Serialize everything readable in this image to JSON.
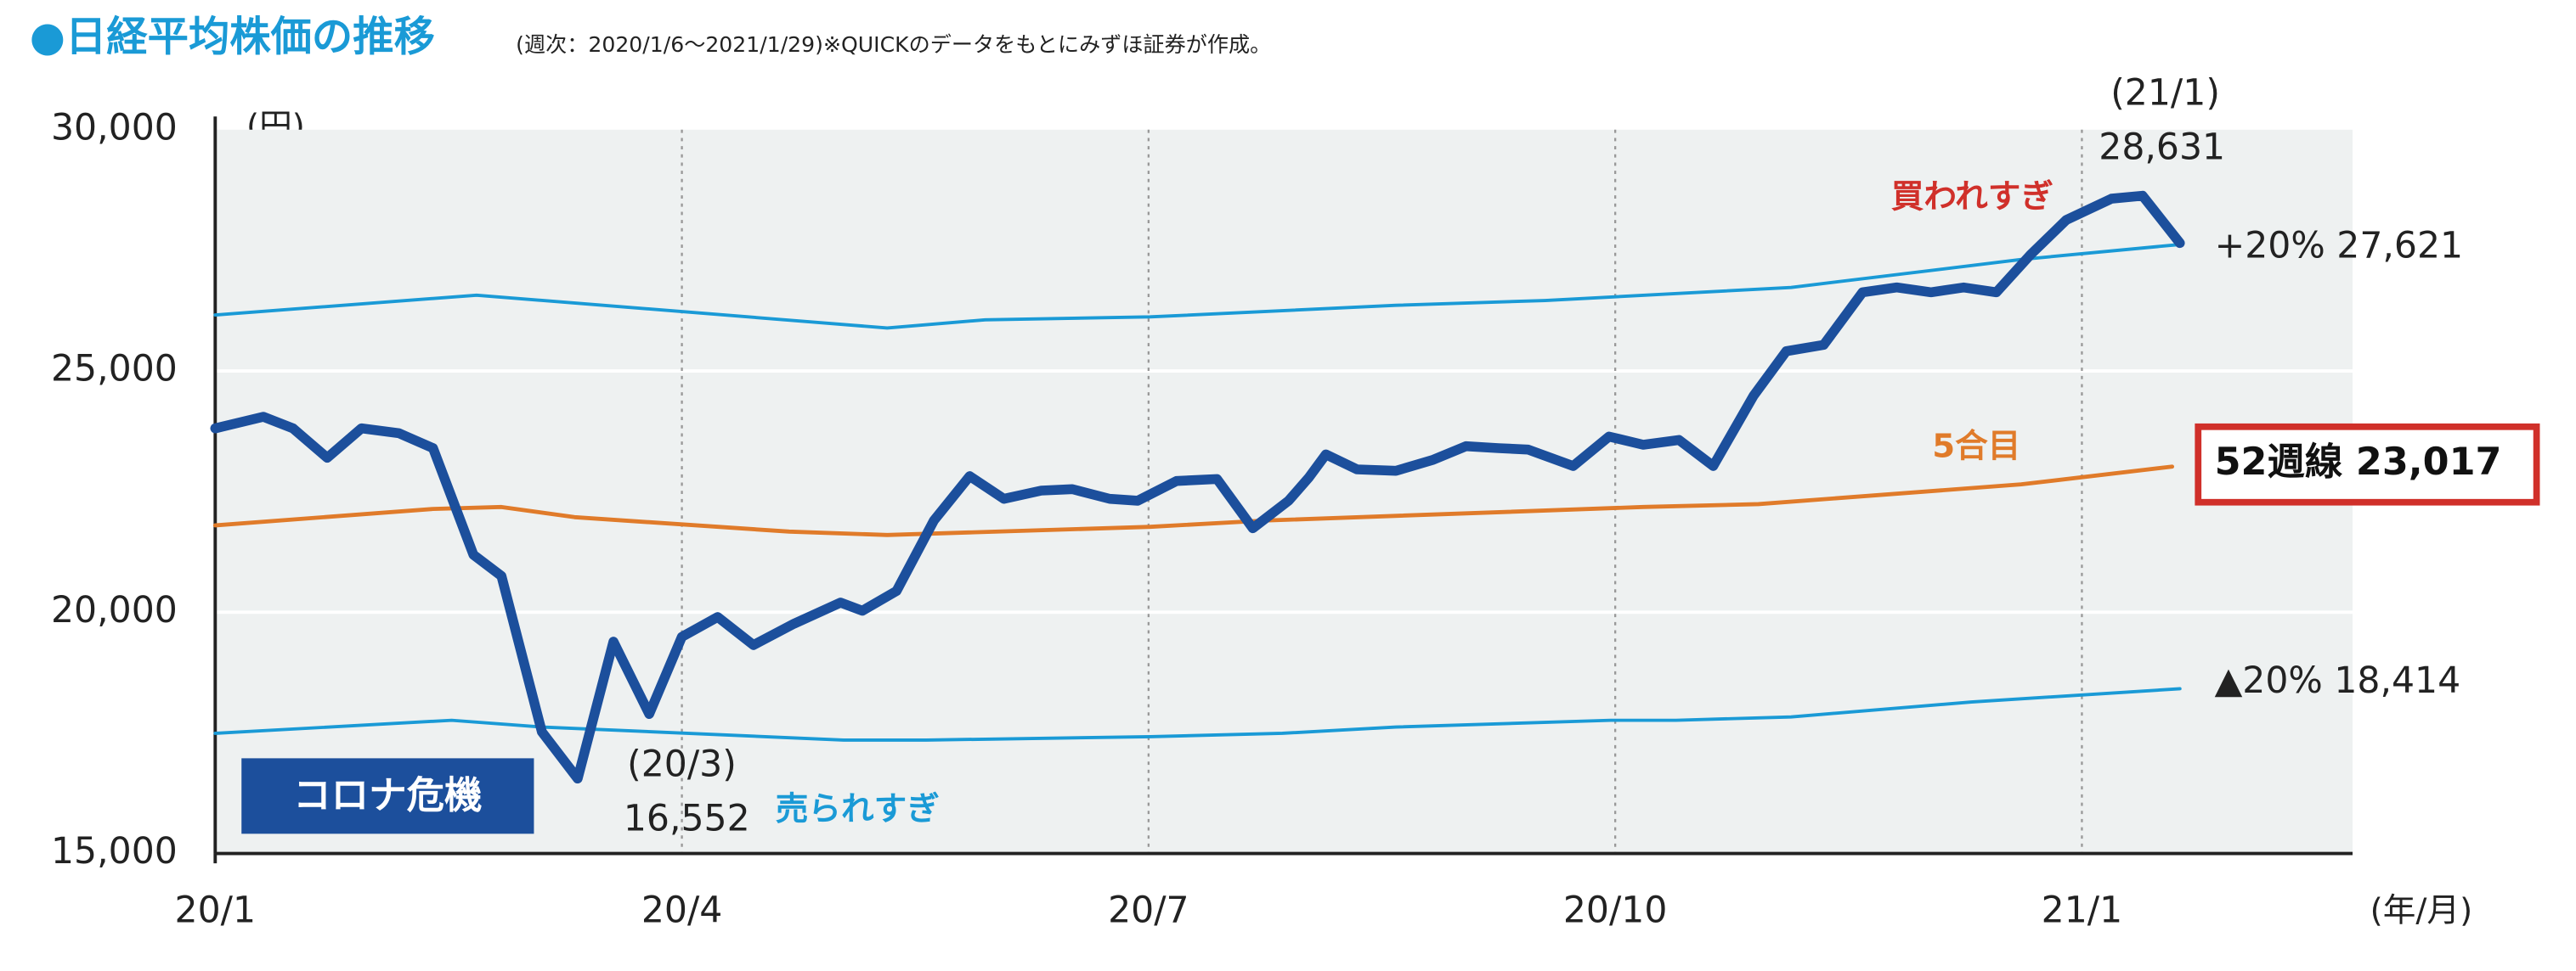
{
  "chart_data": {
    "type": "line",
    "title": "●日経平均株価の推移",
    "subtitle": "(週次：2020/1/6〜2021/1/29)※QUICKのデータをもとにみずほ証券が作成。",
    "y_unit": "(円)",
    "x_unit": "(年/月)",
    "xlim": [
      0,
      13.74
    ],
    "xticks": [
      {
        "value": 0,
        "label": "20/1"
      },
      {
        "value": 3,
        "label": "20/4"
      },
      {
        "value": 6,
        "label": "20/7"
      },
      {
        "value": 9,
        "label": "20/10"
      },
      {
        "value": 12,
        "label": "21/1"
      }
    ],
    "ylim": [
      15000,
      30000
    ],
    "yticks": [
      {
        "value": 15000,
        "label": "15,000"
      },
      {
        "value": 20000,
        "label": "20,000"
      },
      {
        "value": 25000,
        "label": "25,000"
      },
      {
        "value": 30000,
        "label": "30,000"
      }
    ],
    "grid": true,
    "series": [
      {
        "color": "#1c4f9c",
        "x": [
          0,
          0.31,
          0.5,
          0.72,
          0.94,
          1.18,
          1.4,
          1.66,
          1.84,
          2.1,
          2.33,
          2.56,
          2.79,
          3,
          3.23,
          3.46,
          3.72,
          4.02,
          4.16,
          4.38,
          4.62,
          4.85,
          5.07,
          5.31,
          5.51,
          5.75,
          5.93,
          6.18,
          6.44,
          6.67,
          6.9,
          7.03,
          7.14,
          7.34,
          7.59,
          7.83,
          8.04,
          8.25,
          8.44,
          8.73,
          8.96,
          9.18,
          9.41,
          9.63,
          9.89,
          10.1,
          10.34,
          10.59,
          10.81,
          11.03,
          11.24,
          11.45,
          11.67,
          11.9,
          12.19,
          12.39,
          12.63
        ],
        "values": [
          23810,
          24050,
          23810,
          23200,
          23810,
          23710,
          23400,
          21190,
          20750,
          17520,
          16552,
          19390,
          17890,
          19490,
          19900,
          19320,
          19760,
          20200,
          20030,
          20440,
          21900,
          22820,
          22350,
          22520,
          22550,
          22350,
          22310,
          22720,
          22760,
          21740,
          22310,
          22790,
          23270,
          22960,
          22930,
          23160,
          23440,
          23400,
          23370,
          23030,
          23640,
          23470,
          23570,
          23030,
          24490,
          25410,
          25540,
          26630,
          26730,
          26630,
          26730,
          26630,
          27410,
          28130,
          28570,
          28631,
          27650
        ]
      },
      {
        "color": "#1a9ad6",
        "x": [
          0,
          1.68,
          4.32,
          4.95,
          6.01,
          7.59,
          8.55,
          10.13,
          11.61,
          12.63
        ],
        "values": [
          26160,
          26570,
          25890,
          26060,
          26120,
          26360,
          26460,
          26730,
          27310,
          27621
        ]
      },
      {
        "color": "#e07b2a",
        "x": [
          0,
          1.4,
          1.84,
          2.31,
          3.69,
          4.32,
          6.01,
          6.75,
          9.18,
          9.92,
          11.61,
          12.58
        ],
        "values": [
          21800,
          22140,
          22180,
          21970,
          21670,
          21600,
          21770,
          21900,
          22180,
          22240,
          22650,
          23017
        ]
      },
      {
        "color": "#1a9ad6",
        "x": [
          0,
          1.52,
          2.1,
          4.04,
          4.57,
          6.01,
          6.86,
          7.59,
          8.97,
          9.39,
          10.13,
          11.29,
          12.63
        ],
        "values": [
          17490,
          17760,
          17620,
          17350,
          17350,
          17420,
          17490,
          17620,
          17760,
          17760,
          17830,
          18140,
          18414
        ]
      }
    ],
    "annotations": [
      "(21/1)",
      "28,631",
      "+20% 27,621",
      "買われすぎ",
      "5合目",
      "52週線 23,017",
      "▲20% 18,414",
      "(20/3)",
      "16,552",
      "売られすぎ",
      "コロナ危機"
    ]
  }
}
